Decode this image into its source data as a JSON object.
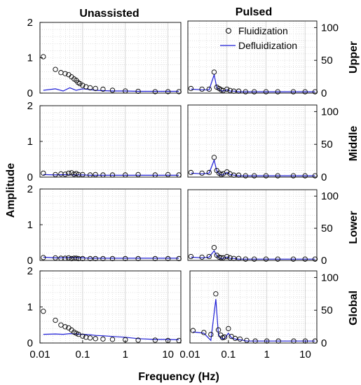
{
  "figure": {
    "column_titles": [
      "Unassisted",
      "Pulsed"
    ],
    "row_labels": [
      "Upper",
      "Middle",
      "Lower",
      "Global"
    ],
    "ylabel": "Amplitude",
    "xlabel": "Frequency (Hz)"
  },
  "colors": {
    "fluidization": "#000000",
    "defluidization": "#1f1fd6",
    "grid": "#d0d0d0",
    "axis": "#000000"
  },
  "chart_data": [
    {
      "type": "line",
      "panel": "Unassisted / Upper",
      "xscale": "log",
      "xlim": [
        0.01,
        20
      ],
      "ylim": [
        0,
        2
      ],
      "yticks": [
        "0",
        "1",
        "2"
      ],
      "series": [
        {
          "name": "Fluidization",
          "style": "markers",
          "x": [
            0.012,
            0.023,
            0.031,
            0.039,
            0.047,
            0.055,
            0.063,
            0.071,
            0.078,
            0.086,
            0.1,
            0.12,
            0.15,
            0.2,
            0.3,
            0.5,
            1,
            2,
            5,
            10,
            18
          ],
          "y": [
            1.03,
            0.67,
            0.58,
            0.55,
            0.52,
            0.46,
            0.4,
            0.36,
            0.3,
            0.27,
            0.22,
            0.18,
            0.15,
            0.13,
            0.11,
            0.08,
            0.06,
            0.05,
            0.04,
            0.04,
            0.04
          ]
        },
        {
          "name": "Defluidization",
          "style": "line",
          "x": [
            0.012,
            0.023,
            0.035,
            0.05,
            0.07,
            0.1,
            0.15,
            0.2,
            0.3,
            0.5,
            1,
            2,
            5,
            10,
            18
          ],
          "y": [
            0.08,
            0.12,
            0.06,
            0.15,
            0.08,
            0.12,
            0.1,
            0.08,
            0.07,
            0.06,
            0.06,
            0.05,
            0.05,
            0.05,
            0.05
          ]
        }
      ]
    },
    {
      "type": "line",
      "panel": "Pulsed / Upper",
      "xscale": "log",
      "xlim": [
        0.01,
        20
      ],
      "ylim": [
        0,
        110
      ],
      "yticks": [
        "0",
        "50",
        "100"
      ],
      "legend": [
        "Fluidization",
        "Defluidization"
      ],
      "series": [
        {
          "name": "Fluidization",
          "style": "markers",
          "x": [
            0.012,
            0.023,
            0.035,
            0.047,
            0.055,
            0.063,
            0.071,
            0.08,
            0.1,
            0.12,
            0.15,
            0.2,
            0.3,
            0.5,
            1,
            2,
            5,
            10,
            18
          ],
          "y": [
            7,
            6,
            6,
            32,
            9,
            7,
            5,
            4,
            6,
            4,
            3,
            3,
            2,
            2,
            2,
            2,
            2,
            2,
            2
          ]
        },
        {
          "name": "Defluidization",
          "style": "line",
          "x": [
            0.012,
            0.023,
            0.035,
            0.047,
            0.055,
            0.063,
            0.071,
            0.08,
            0.1,
            0.12,
            0.15,
            0.2,
            0.3,
            0.5,
            1,
            2,
            5,
            10,
            18
          ],
          "y": [
            6,
            5,
            5,
            28,
            8,
            6,
            4,
            3,
            5,
            3,
            3,
            2,
            2,
            2,
            2,
            2,
            2,
            2,
            2
          ]
        }
      ]
    },
    {
      "type": "line",
      "panel": "Unassisted / Middle",
      "xscale": "log",
      "xlim": [
        0.01,
        20
      ],
      "ylim": [
        0,
        2
      ],
      "yticks": [
        "0",
        "1",
        "2"
      ],
      "series": [
        {
          "name": "Fluidization",
          "style": "markers",
          "x": [
            0.012,
            0.023,
            0.031,
            0.039,
            0.047,
            0.055,
            0.063,
            0.071,
            0.08,
            0.1,
            0.15,
            0.2,
            0.3,
            0.5,
            1,
            2,
            5,
            10,
            18
          ],
          "y": [
            0.11,
            0.07,
            0.09,
            0.08,
            0.11,
            0.12,
            0.08,
            0.1,
            0.07,
            0.07,
            0.06,
            0.07,
            0.06,
            0.06,
            0.06,
            0.07,
            0.06,
            0.07,
            0.06
          ]
        },
        {
          "name": "Defluidization",
          "style": "line",
          "x": [
            0.012,
            0.023,
            0.035,
            0.05,
            0.07,
            0.1,
            0.15,
            0.2,
            0.3,
            0.5,
            1,
            2,
            5,
            10,
            18
          ],
          "y": [
            0.07,
            0.06,
            0.07,
            0.06,
            0.06,
            0.06,
            0.05,
            0.05,
            0.05,
            0.05,
            0.05,
            0.05,
            0.05,
            0.05,
            0.05
          ]
        }
      ]
    },
    {
      "type": "line",
      "panel": "Pulsed / Middle",
      "xscale": "log",
      "xlim": [
        0.01,
        20
      ],
      "ylim": [
        0,
        110
      ],
      "yticks": [
        "0",
        "50",
        "100"
      ],
      "series": [
        {
          "name": "Fluidization",
          "style": "markers",
          "x": [
            0.012,
            0.023,
            0.035,
            0.047,
            0.055,
            0.063,
            0.071,
            0.08,
            0.1,
            0.12,
            0.15,
            0.2,
            0.3,
            0.5,
            1,
            2,
            5,
            10,
            18
          ],
          "y": [
            7,
            6,
            7,
            30,
            10,
            6,
            4,
            5,
            8,
            5,
            3,
            3,
            2,
            2,
            2,
            2,
            2,
            2,
            2
          ]
        },
        {
          "name": "Defluidization",
          "style": "line",
          "x": [
            0.012,
            0.023,
            0.035,
            0.047,
            0.055,
            0.063,
            0.071,
            0.08,
            0.1,
            0.12,
            0.15,
            0.2,
            0.3,
            0.5,
            1,
            2,
            5,
            10,
            18
          ],
          "y": [
            6,
            5,
            6,
            26,
            9,
            5,
            3,
            4,
            7,
            4,
            3,
            2,
            2,
            2,
            2,
            2,
            2,
            2,
            2
          ]
        }
      ]
    },
    {
      "type": "line",
      "panel": "Unassisted / Lower",
      "xscale": "log",
      "xlim": [
        0.01,
        20
      ],
      "ylim": [
        0,
        2
      ],
      "yticks": [
        "0",
        "1",
        "2"
      ],
      "series": [
        {
          "name": "Fluidization",
          "style": "markers",
          "x": [
            0.012,
            0.023,
            0.031,
            0.039,
            0.047,
            0.055,
            0.063,
            0.071,
            0.08,
            0.1,
            0.15,
            0.2,
            0.3,
            0.5,
            1,
            2,
            5,
            10,
            18
          ],
          "y": [
            0.08,
            0.07,
            0.06,
            0.06,
            0.07,
            0.05,
            0.06,
            0.06,
            0.05,
            0.05,
            0.05,
            0.05,
            0.05,
            0.05,
            0.05,
            0.05,
            0.05,
            0.05,
            0.05
          ]
        },
        {
          "name": "Defluidization",
          "style": "line",
          "x": [
            0.012,
            0.023,
            0.035,
            0.05,
            0.07,
            0.1,
            0.15,
            0.2,
            0.3,
            0.5,
            1,
            2,
            5,
            10,
            18
          ],
          "y": [
            0.09,
            0.07,
            0.07,
            0.08,
            0.07,
            0.07,
            0.06,
            0.06,
            0.06,
            0.06,
            0.06,
            0.06,
            0.06,
            0.06,
            0.06
          ]
        }
      ]
    },
    {
      "type": "line",
      "panel": "Pulsed / Lower",
      "xscale": "log",
      "xlim": [
        0.01,
        20
      ],
      "ylim": [
        0,
        110
      ],
      "yticks": [
        "0",
        "50",
        "100"
      ],
      "series": [
        {
          "name": "Fluidization",
          "style": "markers",
          "x": [
            0.012,
            0.023,
            0.035,
            0.047,
            0.055,
            0.063,
            0.071,
            0.08,
            0.1,
            0.12,
            0.15,
            0.2,
            0.3,
            0.5,
            1,
            2,
            5,
            10,
            18
          ],
          "y": [
            6,
            5,
            6,
            20,
            8,
            5,
            4,
            4,
            6,
            4,
            3,
            3,
            2,
            2,
            2,
            2,
            2,
            2,
            2
          ]
        },
        {
          "name": "Defluidization",
          "style": "line",
          "x": [
            0.012,
            0.023,
            0.035,
            0.047,
            0.055,
            0.063,
            0.071,
            0.08,
            0.1,
            0.12,
            0.15,
            0.2,
            0.3,
            0.5,
            1,
            2,
            5,
            10,
            18
          ],
          "y": [
            5,
            4,
            5,
            15,
            7,
            4,
            3,
            3,
            5,
            3,
            3,
            2,
            2,
            2,
            2,
            2,
            2,
            2,
            2
          ]
        }
      ]
    },
    {
      "type": "line",
      "panel": "Unassisted / Global",
      "xscale": "log",
      "xlim": [
        0.01,
        20
      ],
      "ylim": [
        0,
        2
      ],
      "yticks": [
        "0",
        "1",
        "2"
      ],
      "xticks": [
        "0.01",
        "0.1",
        "1",
        "10"
      ],
      "series": [
        {
          "name": "Fluidization",
          "style": "markers",
          "x": [
            0.012,
            0.023,
            0.031,
            0.039,
            0.047,
            0.055,
            0.063,
            0.071,
            0.08,
            0.1,
            0.12,
            0.15,
            0.2,
            0.3,
            0.5,
            1,
            2,
            5,
            10,
            18
          ],
          "y": [
            0.88,
            0.63,
            0.5,
            0.45,
            0.42,
            0.36,
            0.3,
            0.27,
            0.24,
            0.19,
            0.16,
            0.14,
            0.12,
            0.11,
            0.1,
            0.09,
            0.08,
            0.08,
            0.07,
            0.07
          ]
        },
        {
          "name": "Defluidization",
          "style": "line",
          "x": [
            0.012,
            0.023,
            0.035,
            0.05,
            0.07,
            0.1,
            0.15,
            0.2,
            0.3,
            0.5,
            1,
            2,
            5,
            10,
            18
          ],
          "y": [
            0.24,
            0.25,
            0.24,
            0.26,
            0.25,
            0.24,
            0.23,
            0.21,
            0.2,
            0.18,
            0.16,
            0.12,
            0.1,
            0.1,
            0.09
          ]
        }
      ]
    },
    {
      "type": "line",
      "panel": "Pulsed / Global",
      "xscale": "log",
      "xlim": [
        0.01,
        20
      ],
      "ylim": [
        0,
        110
      ],
      "yticks": [
        "0",
        "50",
        "100"
      ],
      "xticks": [
        "0.01",
        "0.1",
        "1",
        "10"
      ],
      "series": [
        {
          "name": "Fluidization",
          "style": "markers",
          "x": [
            0.012,
            0.023,
            0.035,
            0.047,
            0.055,
            0.063,
            0.071,
            0.08,
            0.1,
            0.12,
            0.15,
            0.2,
            0.3,
            0.5,
            1,
            2,
            5,
            10,
            18
          ],
          "y": [
            19,
            16,
            13,
            75,
            20,
            12,
            8,
            9,
            22,
            10,
            7,
            6,
            4,
            3,
            3,
            3,
            3,
            3,
            3
          ]
        },
        {
          "name": "Defluidization",
          "style": "line",
          "x": [
            0.012,
            0.023,
            0.035,
            0.047,
            0.055,
            0.063,
            0.071,
            0.08,
            0.1,
            0.12,
            0.15,
            0.2,
            0.3,
            0.5,
            1,
            2,
            5,
            10,
            18
          ],
          "y": [
            17,
            15,
            4,
            67,
            13,
            8,
            6,
            7,
            15,
            8,
            6,
            5,
            3,
            3,
            3,
            3,
            3,
            3,
            3
          ]
        }
      ]
    }
  ]
}
